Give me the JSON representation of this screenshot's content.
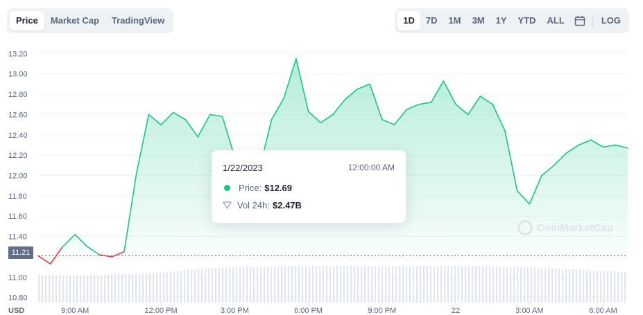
{
  "tabs_left": [
    "Price",
    "Market Cap",
    "TradingView"
  ],
  "tabs_right": [
    "1D",
    "7D",
    "1M",
    "3M",
    "1Y",
    "YTD",
    "ALL"
  ],
  "calendar_icon": "calendar-icon",
  "log_label": "LOG",
  "currency_label": "USD",
  "current_price_label": "11.21",
  "watermark": "CoinMarketCap",
  "colors": {
    "up": "#16c784",
    "down": "#ea3943",
    "grid": "#eff2f5",
    "volume": "#cfd6e4"
  },
  "tooltip": {
    "date": "1/22/2023",
    "time": "12:00:00 AM",
    "price_label": "Price:",
    "price_value": "$12.69",
    "vol_label": "Vol 24h:",
    "vol_value": "$2.47B"
  },
  "chart_data": {
    "type": "area",
    "ylim": [
      10.75,
      13.25
    ],
    "yticks": [
      "13.20",
      "13.00",
      "12.80",
      "12.60",
      "12.40",
      "12.20",
      "12.00",
      "11.80",
      "11.60",
      "11.40",
      "11.00",
      "10.80"
    ],
    "xticks": [
      "9:00 AM",
      "12:00 PM",
      "3:00 PM",
      "6:00 PM",
      "9:00 PM",
      "22",
      "3:00 AM",
      "6:00 AM"
    ],
    "baseline": 11.21,
    "x_hours": [
      0,
      0.5,
      1,
      1.5,
      2,
      2.5,
      3,
      3.5,
      4,
      4.5,
      5,
      5.5,
      6,
      6.5,
      7,
      7.5,
      8,
      8.5,
      9,
      9.5,
      10,
      10.5,
      11,
      11.5,
      12,
      12.5,
      13,
      13.5,
      14,
      14.5,
      15,
      15.5,
      16,
      16.5,
      17,
      17.5,
      18,
      18.5,
      19,
      19.5,
      20,
      20.5,
      21,
      21.5,
      22,
      22.5,
      23,
      23.5,
      24
    ],
    "price": [
      11.21,
      11.13,
      11.3,
      11.42,
      11.3,
      11.22,
      11.2,
      11.25,
      12.02,
      12.6,
      12.5,
      12.62,
      12.55,
      12.38,
      12.6,
      12.58,
      12.18,
      12.22,
      12.05,
      12.55,
      12.76,
      13.15,
      12.63,
      12.52,
      12.6,
      12.75,
      12.85,
      12.9,
      12.55,
      12.5,
      12.65,
      12.7,
      12.72,
      12.93,
      12.7,
      12.6,
      12.78,
      12.7,
      12.44,
      11.85,
      11.72,
      12.0,
      12.1,
      12.22,
      12.3,
      12.35,
      12.28,
      12.3,
      12.27
    ],
    "volume": [
      11.02,
      11.02,
      11.02,
      11.02,
      11.02,
      11.02,
      11.03,
      11.03,
      11.03,
      11.04,
      11.05,
      11.06,
      11.07,
      11.08,
      11.09,
      11.09,
      11.1,
      11.1,
      11.1,
      11.1,
      11.11,
      11.11,
      11.11,
      11.11,
      11.11,
      11.11,
      11.11,
      11.11,
      11.11,
      11.11,
      11.11,
      11.11,
      11.11,
      11.11,
      11.11,
      11.11,
      11.11,
      11.11,
      11.1,
      11.1,
      11.1,
      11.09,
      11.09,
      11.08,
      11.08,
      11.07,
      11.06,
      11.06,
      11.05
    ]
  }
}
